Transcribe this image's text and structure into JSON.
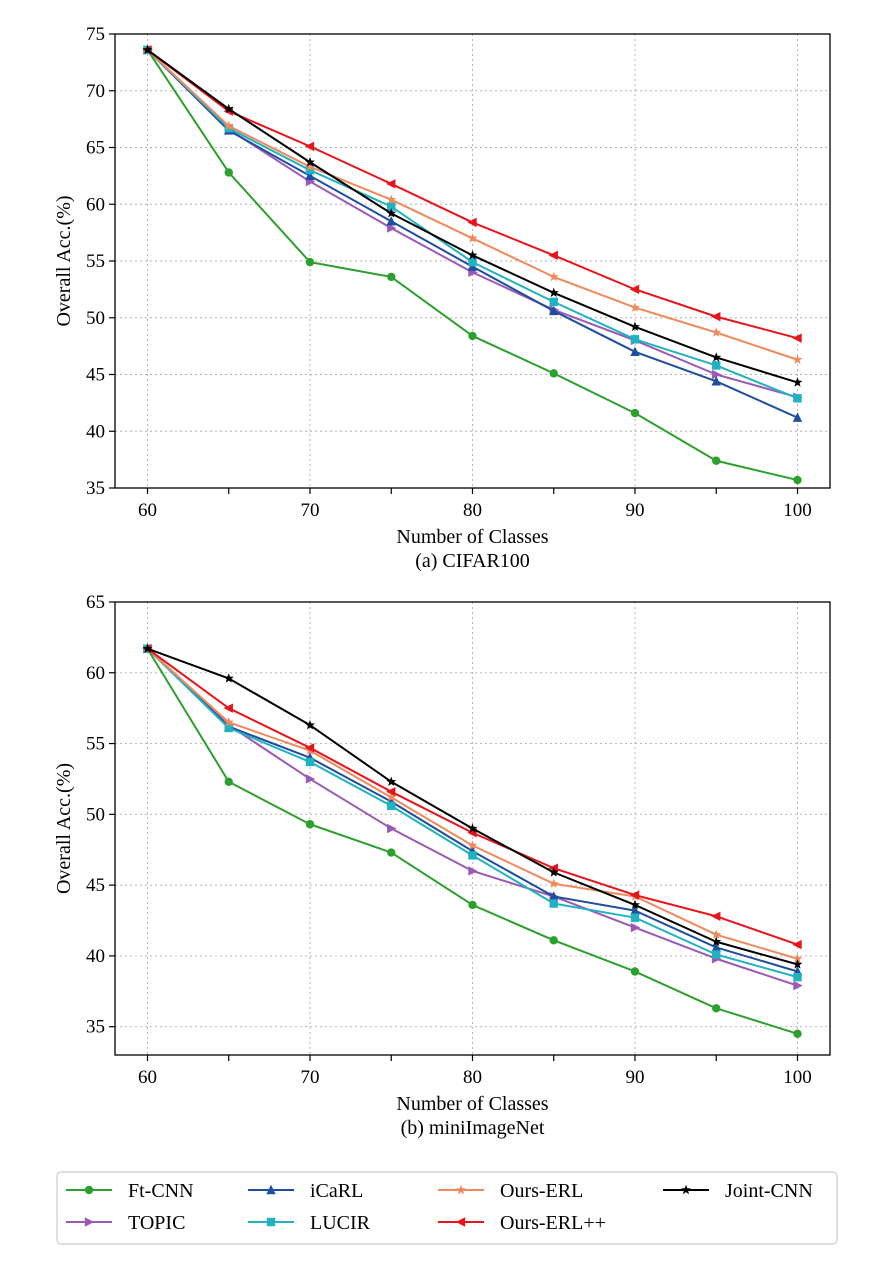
{
  "chart_data": [
    {
      "type": "line",
      "caption": "(a) CIFAR100",
      "xlabel": "Number of Classes",
      "ylabel": "Overall Acc.(%)",
      "xlim": [
        58,
        102
      ],
      "ylim": [
        35,
        75
      ],
      "xticks": [
        60,
        70,
        80,
        90,
        100
      ],
      "yticks": [
        35,
        40,
        45,
        50,
        55,
        60,
        65,
        70,
        75
      ],
      "grid": true,
      "x": [
        60,
        65,
        70,
        75,
        80,
        85,
        90,
        95,
        100
      ],
      "series": [
        {
          "name": "Ft-CNN",
          "color": "#2ca02c",
          "marker": "circle",
          "values": [
            73.6,
            62.8,
            54.9,
            53.6,
            48.4,
            45.1,
            41.6,
            37.4,
            35.7
          ]
        },
        {
          "name": "TOPIC",
          "color": "#9b59b6",
          "marker": "triangle-right",
          "values": [
            73.6,
            66.6,
            62.0,
            57.9,
            54.0,
            50.7,
            48.0,
            45.0,
            43.0
          ]
        },
        {
          "name": "iCaRL",
          "color": "#1f4e9e",
          "marker": "triangle-up",
          "values": [
            73.6,
            66.5,
            62.5,
            58.5,
            54.5,
            50.6,
            47.0,
            44.4,
            41.2
          ]
        },
        {
          "name": "LUCIR",
          "color": "#20b2c0",
          "marker": "square",
          "values": [
            73.6,
            66.7,
            63.0,
            59.8,
            54.9,
            51.4,
            48.1,
            45.8,
            42.9
          ]
        },
        {
          "name": "Ours-ERL",
          "color": "#f08a5d",
          "marker": "star",
          "values": [
            73.6,
            66.9,
            63.3,
            60.4,
            57.0,
            53.6,
            50.9,
            48.7,
            46.3
          ]
        },
        {
          "name": "Ours-ERL++",
          "color": "#e8141c",
          "marker": "triangle-left",
          "values": [
            73.6,
            68.2,
            65.1,
            61.8,
            58.4,
            55.5,
            52.5,
            50.1,
            48.2
          ]
        },
        {
          "name": "Joint-CNN",
          "color": "#000000",
          "marker": "star",
          "values": [
            73.6,
            68.4,
            63.7,
            59.2,
            55.5,
            52.2,
            49.2,
            46.5,
            44.3
          ]
        }
      ]
    },
    {
      "type": "line",
      "caption": "(b) miniImageNet",
      "xlabel": "Number of Classes",
      "ylabel": "Overall Acc.(%)",
      "xlim": [
        58,
        102
      ],
      "ylim": [
        33,
        65
      ],
      "xticks": [
        60,
        70,
        80,
        90,
        100
      ],
      "yticks": [
        35,
        40,
        45,
        50,
        55,
        60,
        65
      ],
      "grid": true,
      "x": [
        60,
        65,
        70,
        75,
        80,
        85,
        90,
        95,
        100
      ],
      "series": [
        {
          "name": "Ft-CNN",
          "color": "#2ca02c",
          "marker": "circle",
          "values": [
            61.7,
            52.3,
            49.3,
            47.3,
            43.6,
            41.1,
            38.9,
            36.3,
            34.5
          ]
        },
        {
          "name": "TOPIC",
          "color": "#9b59b6",
          "marker": "triangle-right",
          "values": [
            61.7,
            56.3,
            52.5,
            49.0,
            46.0,
            44.2,
            42.0,
            39.8,
            37.9
          ]
        },
        {
          "name": "iCaRL",
          "color": "#1f4e9e",
          "marker": "triangle-up",
          "values": [
            61.7,
            56.2,
            54.0,
            50.9,
            47.4,
            44.2,
            43.2,
            40.6,
            38.9
          ]
        },
        {
          "name": "LUCIR",
          "color": "#20b2c0",
          "marker": "square",
          "values": [
            61.7,
            56.1,
            53.7,
            50.6,
            47.1,
            43.7,
            42.7,
            40.1,
            38.5
          ]
        },
        {
          "name": "Ours-ERL",
          "color": "#f08a5d",
          "marker": "star",
          "values": [
            61.7,
            56.5,
            54.5,
            51.2,
            47.8,
            45.1,
            44.2,
            41.5,
            39.8
          ]
        },
        {
          "name": "Ours-ERL++",
          "color": "#e8141c",
          "marker": "triangle-left",
          "values": [
            61.7,
            57.5,
            54.7,
            51.6,
            48.7,
            46.2,
            44.3,
            42.8,
            40.8
          ]
        },
        {
          "name": "Joint-CNN",
          "color": "#000000",
          "marker": "star",
          "values": [
            61.7,
            59.6,
            56.3,
            52.3,
            49.0,
            45.9,
            43.6,
            41.0,
            39.4
          ]
        }
      ]
    }
  ],
  "legend": {
    "entries": [
      {
        "name": "Ft-CNN",
        "color": "#2ca02c",
        "marker": "circle"
      },
      {
        "name": "iCaRL",
        "color": "#1f4e9e",
        "marker": "triangle-up"
      },
      {
        "name": "Ours-ERL",
        "color": "#f08a5d",
        "marker": "star"
      },
      {
        "name": "Joint-CNN",
        "color": "#000000",
        "marker": "star"
      },
      {
        "name": "TOPIC",
        "color": "#9b59b6",
        "marker": "triangle-right"
      },
      {
        "name": "LUCIR",
        "color": "#20b2c0",
        "marker": "square"
      },
      {
        "name": "Ours-ERL++",
        "color": "#e8141c",
        "marker": "triangle-left"
      }
    ]
  }
}
